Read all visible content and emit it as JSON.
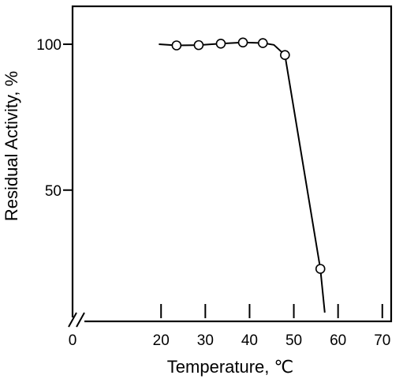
{
  "chart_data": {
    "type": "line",
    "xlabel": "Temperature, ℃",
    "ylabel": "Residual Activity, %",
    "xlim": [
      0,
      72
    ],
    "ylim": [
      5,
      113
    ],
    "x_axis_break": true,
    "x_ticks": [
      0,
      20,
      30,
      40,
      50,
      60,
      70
    ],
    "x_tick_labels": [
      "0",
      "20",
      "30",
      "40",
      "50",
      "60",
      "70"
    ],
    "y_ticks": [
      50,
      100
    ],
    "y_tick_labels": [
      "50",
      "100"
    ],
    "grid": false,
    "legend": "none",
    "series": [
      {
        "points": [
          {
            "x": 23.5,
            "y": 99.6
          },
          {
            "x": 28.5,
            "y": 99.7
          },
          {
            "x": 33.5,
            "y": 100.2
          },
          {
            "x": 38.5,
            "y": 100.6
          },
          {
            "x": 43.0,
            "y": 100.4
          },
          {
            "x": 48.0,
            "y": 96.3
          },
          {
            "x": 56.0,
            "y": 23.0
          }
        ],
        "curve": [
          {
            "x": 19.5,
            "y": 100.0
          },
          {
            "x": 23.5,
            "y": 99.6
          },
          {
            "x": 28.5,
            "y": 99.7
          },
          {
            "x": 33.5,
            "y": 100.2
          },
          {
            "x": 38.5,
            "y": 100.6
          },
          {
            "x": 43.0,
            "y": 100.4
          },
          {
            "x": 45.5,
            "y": 99.8
          },
          {
            "x": 48.0,
            "y": 96.3
          },
          {
            "x": 56.0,
            "y": 23.0
          },
          {
            "x": 57.0,
            "y": 8.0
          }
        ]
      }
    ]
  },
  "colors": {
    "line": "#000000",
    "marker_fill": "#ffffff",
    "background": "#ffffff"
  }
}
